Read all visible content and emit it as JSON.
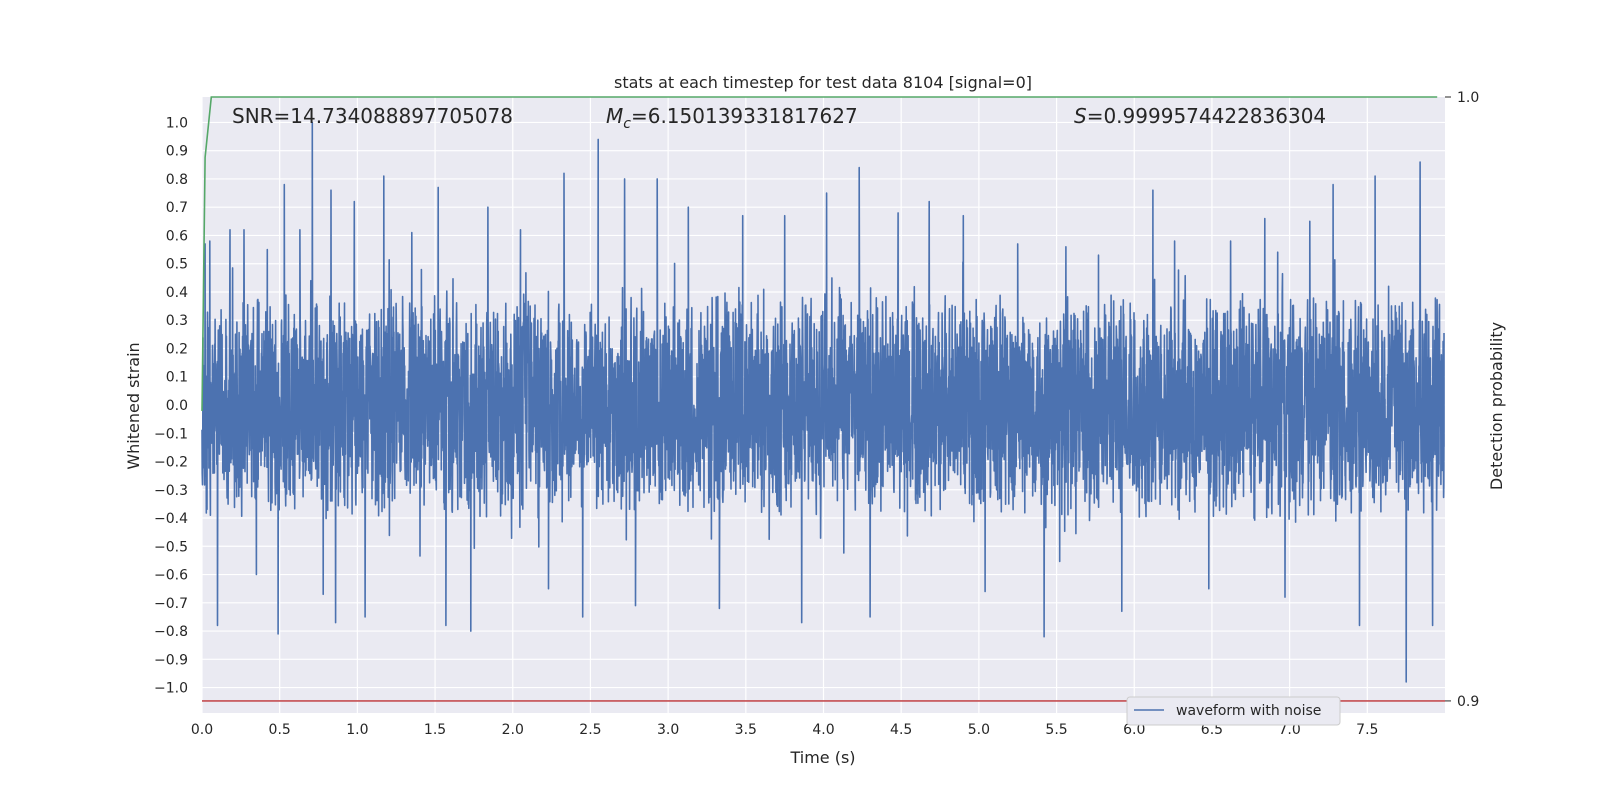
{
  "chart_data": {
    "type": "line",
    "title": "stats at each timestep for test data 8104 [signal=0]",
    "xlabel": "Time (s)",
    "ylabel": "Whitened strain",
    "ylabel_right": "Detection probability",
    "xlim": [
      0,
      8.0
    ],
    "ylim": [
      -1.09,
      1.09
    ],
    "ylim_right": [
      0.898,
      1.0
    ],
    "grid": true,
    "legend_placement": "lower-right",
    "x_ticks": [
      "0.0",
      "0.5",
      "1.0",
      "1.5",
      "2.0",
      "2.5",
      "3.0",
      "3.5",
      "4.0",
      "4.5",
      "5.0",
      "5.5",
      "6.0",
      "6.5",
      "7.0",
      "7.5"
    ],
    "y_ticks": [
      "−1.0",
      "−0.9",
      "−0.8",
      "−0.7",
      "−0.6",
      "−0.5",
      "−0.4",
      "−0.3",
      "−0.2",
      "−0.1",
      "0.0",
      "0.1",
      "0.2",
      "0.3",
      "0.4",
      "0.5",
      "0.6",
      "0.7",
      "0.8",
      "0.9",
      "1.0"
    ],
    "y_ticks_right": [
      "0.9",
      "1.0"
    ],
    "stats": {
      "snr": "SNR=14.734088897705078",
      "mc_prefix": "M",
      "mc_sub": "c",
      "mc_value": "=6.150139331817627",
      "s_prefix": "S",
      "s_value": "=0.9999574422836304"
    },
    "series": [
      {
        "name": "waveform with noise",
        "axis": "left",
        "color": "#4c72b0",
        "description_spikes": [
          [
            0.02,
            0.57
          ],
          [
            0.05,
            0.58
          ],
          [
            0.1,
            -0.78
          ],
          [
            0.18,
            0.62
          ],
          [
            0.27,
            0.62
          ],
          [
            0.35,
            -0.6
          ],
          [
            0.42,
            0.55
          ],
          [
            0.49,
            -0.81
          ],
          [
            0.53,
            0.78
          ],
          [
            0.63,
            0.62
          ],
          [
            0.71,
            1.0
          ],
          [
            0.78,
            -0.67
          ],
          [
            0.83,
            0.76
          ],
          [
            0.86,
            -0.77
          ],
          [
            0.98,
            0.72
          ],
          [
            1.05,
            -0.75
          ],
          [
            1.17,
            0.81
          ],
          [
            1.35,
            0.61
          ],
          [
            1.52,
            0.77
          ],
          [
            1.57,
            -0.78
          ],
          [
            1.73,
            -0.8
          ],
          [
            1.84,
            0.7
          ],
          [
            2.05,
            0.62
          ],
          [
            2.23,
            -0.65
          ],
          [
            2.33,
            0.82
          ],
          [
            2.45,
            -0.75
          ],
          [
            2.55,
            0.94
          ],
          [
            2.72,
            0.8
          ],
          [
            2.79,
            -0.71
          ],
          [
            2.93,
            0.8
          ],
          [
            3.13,
            0.7
          ],
          [
            3.33,
            -0.72
          ],
          [
            3.48,
            0.67
          ],
          [
            3.75,
            0.67
          ],
          [
            3.86,
            -0.77
          ],
          [
            4.02,
            0.75
          ],
          [
            4.23,
            0.84
          ],
          [
            4.3,
            -0.75
          ],
          [
            4.48,
            0.68
          ],
          [
            4.68,
            0.72
          ],
          [
            4.9,
            0.67
          ],
          [
            5.04,
            -0.66
          ],
          [
            5.25,
            0.57
          ],
          [
            5.42,
            -0.82
          ],
          [
            5.56,
            0.56
          ],
          [
            5.77,
            0.53
          ],
          [
            5.92,
            -0.73
          ],
          [
            6.12,
            0.76
          ],
          [
            6.26,
            0.58
          ],
          [
            6.48,
            -0.65
          ],
          [
            6.62,
            0.58
          ],
          [
            6.84,
            0.66
          ],
          [
            6.97,
            -0.68
          ],
          [
            7.13,
            0.65
          ],
          [
            7.28,
            0.78
          ],
          [
            7.45,
            -0.78
          ],
          [
            7.55,
            0.81
          ],
          [
            7.75,
            -0.98
          ],
          [
            7.84,
            0.86
          ],
          [
            7.92,
            -0.78
          ]
        ]
      },
      {
        "name": "",
        "axis": "right",
        "color": "#55a868",
        "x": [
          0.0,
          0.02,
          0.06,
          0.1,
          1.0,
          2.0,
          3.0,
          4.0,
          5.0,
          6.0,
          7.0,
          7.95
        ],
        "y": [
          0.948,
          0.99,
          1.0,
          1.0,
          1.0,
          1.0,
          1.0,
          1.0,
          1.0,
          1.0,
          1.0,
          1.0
        ]
      },
      {
        "name": "",
        "axis": "right",
        "color": "#c44e52",
        "x": [
          0.0,
          8.0
        ],
        "y": [
          0.9,
          0.9
        ]
      }
    ]
  }
}
